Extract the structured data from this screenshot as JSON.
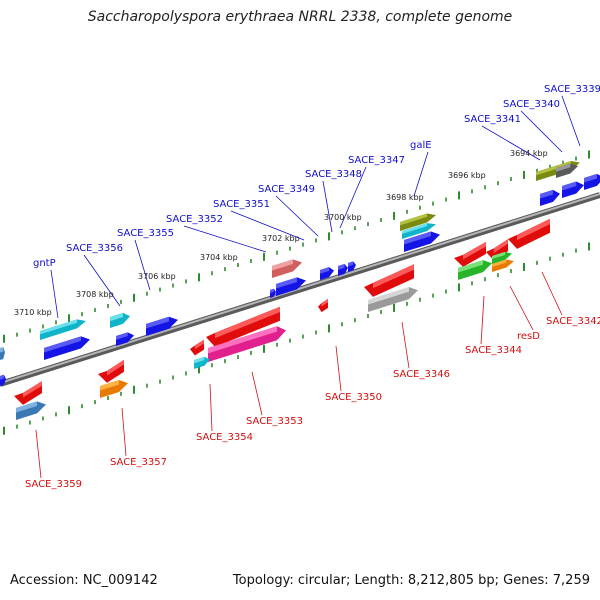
{
  "title": "Saccharopolyspora erythraea NRRL 2338, complete genome",
  "footer": {
    "accession": "Accession: NC_009142",
    "topology": "Topology: circular; Length: 8,212,805 bp; Genes: 7,259"
  },
  "colors": {
    "forward_label": "#1010c8",
    "reverse_label": "#d01010",
    "backbone": "#8c8c8c",
    "tick": "#2e8b2e"
  },
  "ruler": [
    "3694 kbp",
    "3696 kbp",
    "3698 kbp",
    "3700 kbp",
    "3702 kbp",
    "3704 kbp",
    "3706 kbp",
    "3708 kbp",
    "3710 kbp"
  ],
  "forward_labels": [
    "SACE_3339",
    "SACE_3340",
    "SACE_3341",
    "galE",
    "SACE_3347",
    "SACE_3348",
    "SACE_3349",
    "SACE_3351",
    "SACE_3352",
    "SACE_3355",
    "SACE_3356",
    "gntP"
  ],
  "reverse_labels": [
    "SACE_3342",
    "resD",
    "SACE_3344",
    "SACE_3346",
    "SACE_3350",
    "SACE_3353",
    "SACE_3354",
    "SACE_3357",
    "SACE_3359"
  ]
}
